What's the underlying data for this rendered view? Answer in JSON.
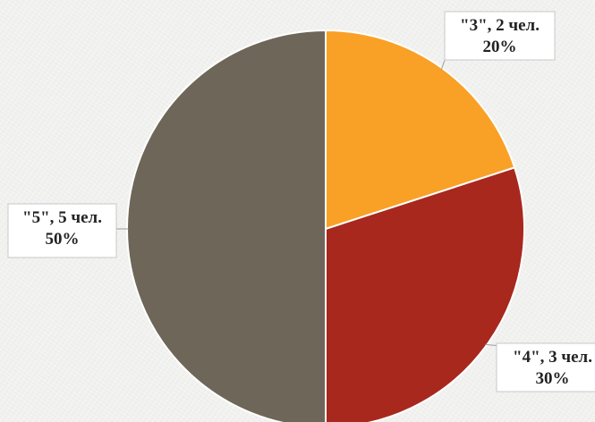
{
  "chart_data": {
    "type": "pie",
    "slices": [
      {
        "category": "\"3\"",
        "count_label": "\"3\", 2 чел.",
        "percent_label": "20%",
        "value": 20,
        "color": "#f9a126"
      },
      {
        "category": "\"4\"",
        "count_label": "\"4\", 3 чел.",
        "percent_label": "30%",
        "value": 30,
        "color": "#a8281e"
      },
      {
        "category": "\"5\"",
        "count_label": "\"5\", 5 чел.",
        "percent_label": "50%",
        "value": 50,
        "color": "#6e6658"
      }
    ],
    "start_angle_deg": 0,
    "direction": "clockwise",
    "title": "",
    "legend": "none",
    "data_labels": "outside with leader lines"
  }
}
